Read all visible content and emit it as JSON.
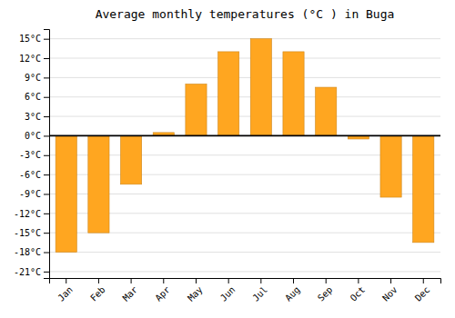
{
  "chart_data": {
    "type": "bar",
    "title": "Average monthly temperatures (°C ) in Buga",
    "categories": [
      "Jan",
      "Feb",
      "Mar",
      "Apr",
      "May",
      "Jun",
      "Jul",
      "Aug",
      "Sep",
      "Oct",
      "Nov",
      "Dec"
    ],
    "values": [
      -18,
      -15,
      -7.5,
      0.5,
      8,
      13,
      15,
      13,
      7.5,
      -0.5,
      -9.5,
      -16.5
    ],
    "color": "#FFA620",
    "ylim": [
      -22,
      16.5
    ],
    "yticks": [
      {
        "value": -21,
        "label": "-21°C"
      },
      {
        "value": -18,
        "label": "-18°C"
      },
      {
        "value": -15,
        "label": "-15°C"
      },
      {
        "value": -12,
        "label": "-12°C"
      },
      {
        "value": -9,
        "label": "-9°C"
      },
      {
        "value": -6,
        "label": "-6°C"
      },
      {
        "value": -3,
        "label": "-3°C"
      },
      {
        "value": 0,
        "label": "0°C"
      },
      {
        "value": 3,
        "label": "3°C"
      },
      {
        "value": 6,
        "label": "6°C"
      },
      {
        "value": 9,
        "label": "9°C"
      },
      {
        "value": 12,
        "label": "12°C"
      },
      {
        "value": 15,
        "label": "15°C"
      }
    ],
    "grid": true
  }
}
